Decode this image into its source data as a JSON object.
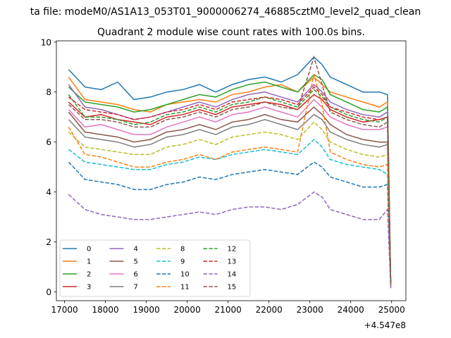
{
  "chart_data": {
    "type": "line",
    "suptitle": "ta file: modeM0/AS1A13_053T01_9000006274_46885cztM0_level2_quad_clean",
    "title": "Quadrant 2 module wise count rates with 100.0s bins.",
    "xlabel": "",
    "ylabel": "",
    "x_offset_label": "+4.547e8",
    "xlim": [
      16800,
      25350
    ],
    "ylim": [
      -0.35,
      10.05
    ],
    "x_ticks": [
      17000,
      18000,
      19000,
      20000,
      21000,
      22000,
      23000,
      24000,
      25000
    ],
    "x_tick_labels": [
      "17000",
      "18000",
      "19000",
      "20000",
      "21000",
      "22000",
      "23000",
      "24000",
      "25000"
    ],
    "y_ticks": [
      0,
      2,
      4,
      6,
      8,
      10
    ],
    "y_tick_labels": [
      "0",
      "2",
      "4",
      "6",
      "8",
      "10"
    ],
    "grid": false,
    "legend_placement": "lower-left",
    "legend_columns": 4,
    "x": [
      17100,
      17500,
      17900,
      18300,
      18700,
      19100,
      19500,
      19900,
      20300,
      20700,
      21100,
      21500,
      21900,
      22300,
      22700,
      23100,
      23300,
      23500,
      23900,
      24300,
      24700,
      24900,
      24980
    ],
    "series": [
      {
        "name": "0",
        "color": "#1f77b4",
        "dash": "solid",
        "values": [
          8.9,
          8.2,
          8.1,
          8.4,
          7.7,
          7.8,
          8.0,
          8.1,
          8.3,
          8.0,
          8.3,
          8.5,
          8.6,
          8.4,
          8.7,
          9.4,
          9.1,
          8.6,
          8.3,
          8.0,
          8.0,
          7.9,
          0.3
        ]
      },
      {
        "name": "1",
        "color": "#ff7f0e",
        "dash": "solid",
        "values": [
          8.6,
          7.7,
          7.6,
          7.5,
          7.3,
          7.2,
          7.5,
          7.6,
          7.7,
          7.6,
          7.9,
          8.0,
          8.2,
          8.3,
          8.0,
          8.6,
          8.3,
          8.0,
          7.8,
          7.6,
          7.4,
          7.6,
          0.2
        ]
      },
      {
        "name": "2",
        "color": "#2ca02c",
        "dash": "solid",
        "values": [
          8.2,
          7.6,
          7.5,
          7.4,
          7.2,
          7.3,
          7.5,
          7.7,
          7.9,
          7.8,
          8.1,
          8.3,
          8.4,
          8.2,
          8.0,
          8.7,
          8.5,
          7.9,
          7.6,
          7.3,
          7.2,
          7.4,
          0.3
        ]
      },
      {
        "name": "3",
        "color": "#d62728",
        "dash": "solid",
        "values": [
          7.6,
          7.0,
          7.1,
          6.9,
          6.8,
          6.7,
          7.0,
          7.1,
          7.3,
          7.1,
          7.4,
          7.5,
          7.6,
          7.5,
          7.3,
          7.9,
          7.7,
          7.3,
          7.0,
          6.8,
          6.9,
          7.0,
          0.3
        ]
      },
      {
        "name": "4",
        "color": "#9467bd",
        "dash": "solid",
        "values": [
          8.3,
          7.4,
          7.3,
          7.1,
          6.9,
          7.0,
          7.2,
          7.4,
          7.6,
          7.4,
          7.7,
          7.9,
          8.0,
          7.8,
          7.6,
          8.3,
          8.0,
          7.6,
          7.3,
          7.1,
          7.0,
          7.2,
          0.3
        ]
      },
      {
        "name": "5",
        "color": "#8c564b",
        "dash": "solid",
        "values": [
          7.2,
          6.4,
          6.3,
          6.2,
          6.0,
          6.1,
          6.4,
          6.5,
          6.7,
          6.5,
          6.8,
          6.9,
          7.1,
          6.9,
          6.8,
          7.4,
          7.1,
          6.7,
          6.3,
          6.1,
          6.0,
          6.0,
          0.25
        ]
      },
      {
        "name": "6",
        "color": "#e377c2",
        "dash": "solid",
        "values": [
          7.3,
          6.6,
          6.7,
          6.5,
          6.3,
          6.3,
          6.6,
          6.8,
          7.0,
          6.8,
          7.1,
          7.2,
          7.4,
          7.2,
          7.0,
          7.7,
          7.4,
          7.0,
          6.7,
          6.5,
          6.5,
          6.6,
          0.3
        ]
      },
      {
        "name": "7",
        "color": "#7f7f7f",
        "dash": "solid",
        "values": [
          6.9,
          6.2,
          6.1,
          6.0,
          5.8,
          5.9,
          6.2,
          6.3,
          6.5,
          6.3,
          6.6,
          6.7,
          6.9,
          6.7,
          6.5,
          7.1,
          6.9,
          6.4,
          6.1,
          5.9,
          5.8,
          5.9,
          0.25
        ]
      },
      {
        "name": "8",
        "color": "#bcbd22",
        "dash": "dashed",
        "values": [
          6.4,
          5.8,
          5.7,
          5.6,
          5.5,
          5.5,
          5.8,
          5.9,
          6.1,
          5.9,
          6.2,
          6.3,
          6.4,
          6.3,
          6.1,
          6.8,
          6.5,
          6.0,
          5.7,
          5.5,
          5.4,
          5.5,
          0.25
        ]
      },
      {
        "name": "9",
        "color": "#17becf",
        "dash": "dashed",
        "values": [
          5.7,
          5.2,
          5.1,
          5.0,
          4.9,
          4.9,
          5.1,
          5.2,
          5.4,
          5.3,
          5.5,
          5.6,
          5.7,
          5.6,
          5.5,
          6.1,
          5.8,
          5.3,
          5.1,
          5.0,
          4.9,
          4.7,
          0.2
        ]
      },
      {
        "name": "10",
        "color": "#1f77b4",
        "dash": "dashed",
        "values": [
          5.2,
          4.5,
          4.4,
          4.3,
          4.1,
          4.1,
          4.3,
          4.4,
          4.6,
          4.5,
          4.7,
          4.8,
          4.9,
          4.8,
          4.7,
          5.2,
          5.0,
          4.6,
          4.4,
          4.2,
          4.2,
          4.3,
          0.2
        ]
      },
      {
        "name": "11",
        "color": "#ff7f0e",
        "dash": "dashed",
        "values": [
          6.6,
          5.5,
          5.4,
          5.2,
          5.0,
          5.0,
          5.2,
          5.3,
          5.5,
          5.3,
          5.6,
          5.7,
          5.8,
          5.7,
          5.6,
          8.7,
          7.5,
          5.6,
          5.3,
          5.1,
          5.0,
          5.1,
          0.2
        ]
      },
      {
        "name": "12",
        "color": "#2ca02c",
        "dash": "dashed",
        "values": [
          7.9,
          7.0,
          7.0,
          6.9,
          6.7,
          6.8,
          7.1,
          7.2,
          7.4,
          7.2,
          7.5,
          7.6,
          7.8,
          7.6,
          7.4,
          8.1,
          7.8,
          7.4,
          7.1,
          6.9,
          6.8,
          7.0,
          0.3
        ]
      },
      {
        "name": "13",
        "color": "#d62728",
        "dash": "dashed",
        "values": [
          7.8,
          7.3,
          7.2,
          7.1,
          6.9,
          7.0,
          7.2,
          7.3,
          7.5,
          7.3,
          7.6,
          7.7,
          7.8,
          7.7,
          7.5,
          8.2,
          7.9,
          7.4,
          7.2,
          7.0,
          6.9,
          7.0,
          0.3
        ]
      },
      {
        "name": "14",
        "color": "#9467bd",
        "dash": "dashed",
        "values": [
          3.9,
          3.3,
          3.1,
          3.0,
          2.9,
          2.9,
          3.0,
          3.1,
          3.2,
          3.1,
          3.3,
          3.4,
          3.4,
          3.3,
          3.5,
          4.0,
          3.8,
          3.3,
          3.1,
          2.9,
          2.9,
          3.3,
          0.15
        ]
      },
      {
        "name": "15",
        "color": "#8c564b",
        "dash": "dashed",
        "values": [
          7.5,
          6.9,
          6.9,
          6.8,
          6.6,
          6.6,
          6.9,
          7.0,
          7.2,
          7.0,
          7.3,
          7.4,
          7.6,
          7.4,
          7.3,
          9.4,
          8.3,
          7.2,
          6.9,
          6.7,
          6.6,
          6.8,
          0.3
        ]
      }
    ]
  }
}
